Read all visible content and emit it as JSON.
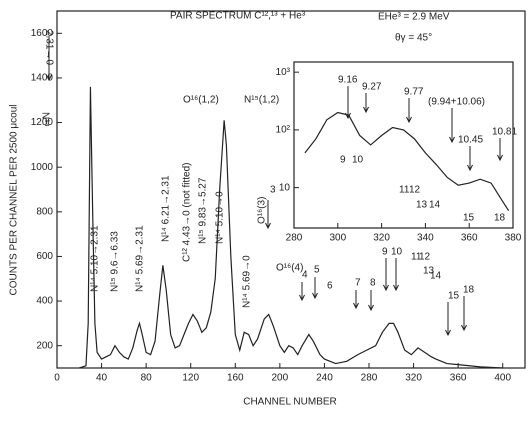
{
  "chart_data": [
    {
      "type": "line",
      "title": "PAIR SPECTRUM C¹²,¹³ + He³",
      "subtitle": "EHe³ = 2.9 MeV",
      "annotations_header": [
        "θγ = 45°"
      ],
      "x_label": "CHANNEL NUMBER",
      "y_label": "COUNTS PER CHANNEL PER 2500 μcoul",
      "xlim": [
        0,
        420
      ],
      "ylim": [
        100,
        1700
      ],
      "xticks": [
        0,
        40,
        80,
        120,
        160,
        200,
        240,
        280,
        320,
        360,
        400
      ],
      "yticks": [
        200,
        400,
        600,
        800,
        1000,
        1200,
        1400,
        1600
      ],
      "series": [
        {
          "color": "#222222",
          "x": [
            20,
            26,
            28,
            30,
            32,
            34,
            36,
            40,
            44,
            48,
            52,
            56,
            60,
            64,
            68,
            72,
            74,
            76,
            80,
            84,
            88,
            92,
            95,
            98,
            102,
            106,
            110,
            114,
            118,
            122,
            126,
            130,
            134,
            138,
            142,
            146,
            150,
            152,
            156,
            160,
            164,
            168,
            172,
            176,
            180,
            186,
            190,
            194,
            200,
            204,
            208,
            212,
            216,
            220,
            226,
            230,
            236,
            240,
            250,
            260,
            270,
            278,
            286,
            292,
            298,
            302,
            306,
            312,
            318,
            324,
            330,
            336,
            340,
            350,
            360,
            370,
            380,
            400
          ],
          "values": [
            100,
            110,
            300,
            1360,
            800,
            300,
            170,
            140,
            150,
            160,
            200,
            170,
            150,
            140,
            190,
            270,
            300,
            260,
            170,
            160,
            220,
            420,
            560,
            450,
            250,
            190,
            200,
            250,
            300,
            340,
            310,
            260,
            280,
            350,
            500,
            900,
            1210,
            1100,
            600,
            250,
            180,
            260,
            250,
            200,
            230,
            320,
            340,
            290,
            200,
            170,
            200,
            190,
            160,
            200,
            250,
            220,
            160,
            140,
            120,
            130,
            160,
            180,
            200,
            260,
            300,
            300,
            260,
            180,
            160,
            190,
            170,
            150,
            140,
            120,
            115,
            110,
            105,
            100
          ]
        }
      ],
      "annotations": [
        "2.31→0",
        "N¹⁴",
        "O¹⁶(1,2)",
        "N¹⁵(1,2)",
        "N¹⁴ 5.10→2.31",
        "N¹⁵ 9.6→6.33",
        "N¹⁴ 5.69→2.31",
        "N¹⁴ 6.21→2.31",
        "C¹² 4.43→0 (not fitted)",
        "N¹⁵ 9.83→5.27",
        "N¹⁴ 5.10→0",
        "N¹⁴ 5.69→0",
        "O¹⁶(3)",
        "3",
        "O¹⁶(4)",
        "4",
        "5",
        "6",
        "7",
        "8",
        "9",
        "10",
        "11",
        "12",
        "13",
        "14",
        "15",
        "18"
      ]
    },
    {
      "type": "line",
      "log_y": true,
      "xlim": [
        280,
        380
      ],
      "ylim": [
        2,
        1500
      ],
      "xticks": [
        280,
        300,
        320,
        340,
        360,
        380
      ],
      "yticks": [
        {
          "value": 10,
          "label": "10"
        },
        {
          "value": 100,
          "label": "10²"
        },
        {
          "value": 1000,
          "label": "10³"
        }
      ],
      "series": [
        {
          "color": "#222222",
          "x": [
            285,
            290,
            295,
            300,
            305,
            310,
            315,
            320,
            325,
            330,
            335,
            340,
            345,
            350,
            355,
            360,
            365,
            370,
            375,
            378
          ],
          "values": [
            40,
            70,
            150,
            200,
            180,
            80,
            55,
            80,
            110,
            100,
            70,
            40,
            25,
            15,
            11,
            12,
            14,
            12,
            6,
            4
          ]
        }
      ],
      "annotations": [
        "9.16",
        "9.27",
        "9.77",
        "(9.94+10.06)",
        "10.45",
        "10.81",
        "9",
        "10",
        "11",
        "12",
        "13",
        "14",
        "15",
        "18"
      ]
    }
  ]
}
